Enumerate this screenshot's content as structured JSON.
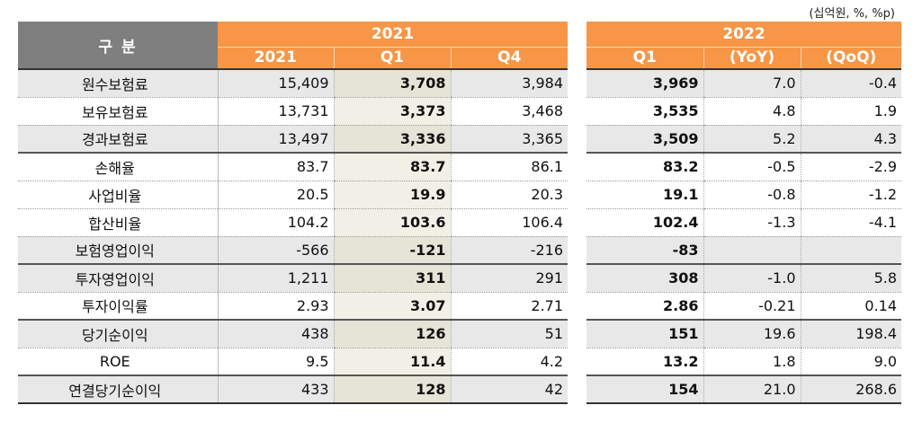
{
  "unit_note": "(십억원, %, %p)",
  "header": {
    "category": "구 분",
    "group_2021": "2021",
    "group_2022": "2022",
    "col_2021": "2021",
    "col_q1": "Q1",
    "col_q4": "Q4",
    "col_2022_q1": "Q1",
    "col_yoy": "(YoY)",
    "col_qoq": "(QoQ)"
  },
  "rows": [
    {
      "label": "원수보험료",
      "y2021": "15,409",
      "q1": "3,708",
      "q4": "3,984",
      "q1_2022": "3,969",
      "yoy": "7.0",
      "qoq": "-0.4"
    },
    {
      "label": "보유보험료",
      "y2021": "13,731",
      "q1": "3,373",
      "q4": "3,468",
      "q1_2022": "3,535",
      "yoy": "4.8",
      "qoq": "1.9"
    },
    {
      "label": "경과보험료",
      "y2021": "13,497",
      "q1": "3,336",
      "q4": "3,365",
      "q1_2022": "3,509",
      "yoy": "5.2",
      "qoq": "4.3"
    },
    {
      "label": "손해율",
      "y2021": "83.7",
      "q1": "83.7",
      "q4": "86.1",
      "q1_2022": "83.2",
      "yoy": "-0.5",
      "qoq": "-2.9"
    },
    {
      "label": "사업비율",
      "y2021": "20.5",
      "q1": "19.9",
      "q4": "20.3",
      "q1_2022": "19.1",
      "yoy": "-0.8",
      "qoq": "-1.2"
    },
    {
      "label": "합산비율",
      "y2021": "104.2",
      "q1": "103.6",
      "q4": "106.4",
      "q1_2022": "102.4",
      "yoy": "-1.3",
      "qoq": "-4.1"
    },
    {
      "label": "보험영업이익",
      "y2021": "-566",
      "q1": "-121",
      "q4": "-216",
      "q1_2022": "-83",
      "yoy": "",
      "qoq": ""
    },
    {
      "label": "투자영업이익",
      "y2021": "1,211",
      "q1": "311",
      "q4": "291",
      "q1_2022": "308",
      "yoy": "-1.0",
      "qoq": "5.8"
    },
    {
      "label": "투자이익률",
      "y2021": "2.93",
      "q1": "3.07",
      "q4": "2.71",
      "q1_2022": "2.86",
      "yoy": "-0.21",
      "qoq": "0.14"
    },
    {
      "label": "당기순이익",
      "y2021": "438",
      "q1": "126",
      "q4": "51",
      "q1_2022": "151",
      "yoy": "19.6",
      "qoq": "198.4"
    },
    {
      "label": "ROE",
      "y2021": "9.5",
      "q1": "11.4",
      "q4": "4.2",
      "q1_2022": "13.2",
      "yoy": "1.8",
      "qoq": "9.0"
    },
    {
      "label": "연결당기순이익",
      "y2021": "433",
      "q1": "128",
      "q4": "42",
      "q1_2022": "154",
      "yoy": "21.0",
      "qoq": "268.6"
    }
  ]
}
